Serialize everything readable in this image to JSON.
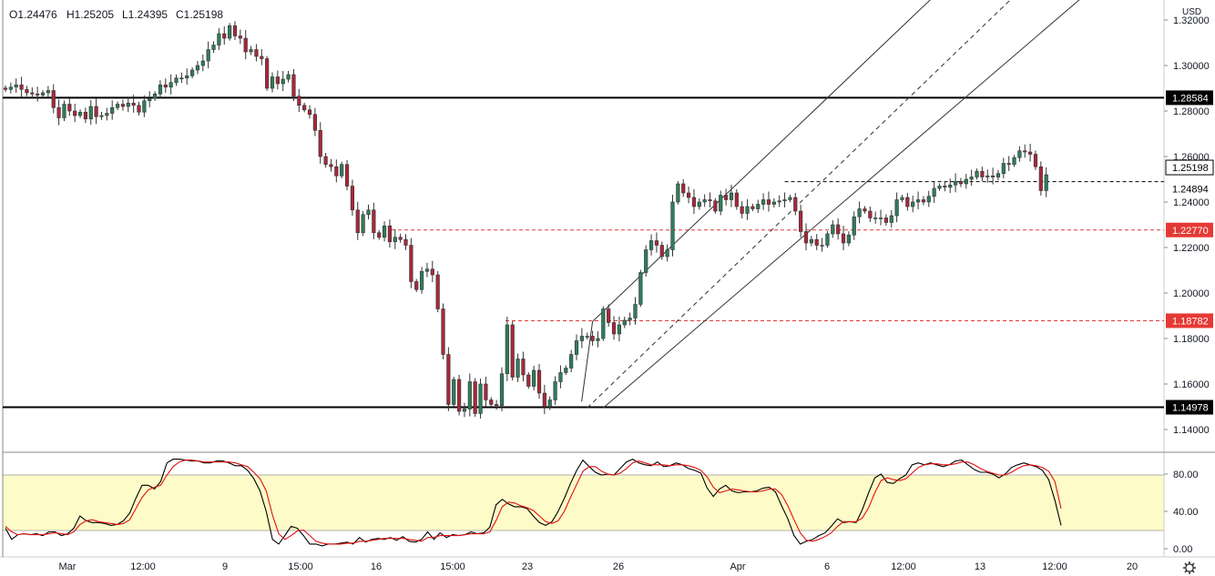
{
  "ohlc_legend": {
    "open": "O1.24476",
    "high": "H1.25205",
    "low": "L1.24395",
    "close": "C1.25198"
  },
  "currency_label": "USD",
  "settings_icon": "gear-icon",
  "colors": {
    "up": "#2e7d5b",
    "down": "#a8283a",
    "wick": "#333333",
    "stoch_k": "#000000",
    "stoch_d": "#e01010",
    "stoch_band": "#fdfbc8",
    "level_black": "#000000",
    "level_red": "#e53935"
  },
  "chart_data": [
    {
      "type": "candlestick",
      "title": "",
      "ylim": [
        1.13,
        1.325
      ],
      "y_ticks": [
        "1.32000",
        "1.30000",
        "1.28000",
        "1.26000",
        "1.24000",
        "1.22000",
        "1.20000",
        "1.18000",
        "1.16000",
        "1.14000"
      ],
      "x_ticks": [
        "Mar",
        "12:00",
        "9",
        "15:00",
        "16",
        "15:00",
        "23",
        "26",
        "Apr",
        "6",
        "12:00",
        "13",
        "12:00",
        "20"
      ],
      "grid": false,
      "price_labels": [
        {
          "text": "1.28584",
          "value": 1.28584,
          "style": "black-solid"
        },
        {
          "text": "1.25198",
          "value": 1.25198,
          "style": "current"
        },
        {
          "text": "1.24894",
          "value": 1.24894,
          "style": "black-dashed"
        },
        {
          "text": "1.22770",
          "value": 1.2277,
          "style": "red-dashed"
        },
        {
          "text": "1.18782",
          "value": 1.18782,
          "style": "red-dashed"
        },
        {
          "text": "1.14978",
          "value": 1.14978,
          "style": "black-solid"
        }
      ],
      "closes": [
        1.2895,
        1.2905,
        1.2915,
        1.2895,
        1.288,
        1.2875,
        1.287,
        1.288,
        1.289,
        1.2815,
        1.277,
        1.283,
        1.28,
        1.278,
        1.2795,
        1.2765,
        1.282,
        1.2775,
        1.278,
        1.279,
        1.2815,
        1.283,
        1.282,
        1.2835,
        1.2825,
        1.2795,
        1.2845,
        1.2855,
        1.2875,
        1.2915,
        1.2905,
        1.2925,
        1.2945,
        1.2945,
        1.2955,
        1.298,
        1.3,
        1.302,
        1.307,
        1.309,
        1.314,
        1.312,
        1.3175,
        1.313,
        1.312,
        1.306,
        1.307,
        1.304,
        1.303,
        1.29,
        1.295,
        1.292,
        1.294,
        1.296,
        1.2865,
        1.2825,
        1.2805,
        1.2785,
        1.2715,
        1.26,
        1.2565,
        1.2555,
        1.2515,
        1.2565,
        1.247,
        1.2365,
        1.2265,
        1.2345,
        1.2365,
        1.2265,
        1.2245,
        1.2295,
        1.2225,
        1.2245,
        1.2235,
        1.221,
        1.205,
        1.2015,
        1.2095,
        1.2105,
        1.208,
        1.193,
        1.173,
        1.151,
        1.162,
        1.148,
        1.149,
        1.161,
        1.147,
        1.16,
        1.153,
        1.151,
        1.1505,
        1.1645,
        1.186,
        1.163,
        1.171,
        1.164,
        1.159,
        1.166,
        1.156,
        1.15,
        1.153,
        1.161,
        1.165,
        1.167,
        1.173,
        1.179,
        1.181,
        1.181,
        1.179,
        1.18,
        1.193,
        1.187,
        1.182,
        1.186,
        1.188,
        1.189,
        1.195,
        1.209,
        1.219,
        1.223,
        1.221,
        1.216,
        1.219,
        1.24,
        1.248,
        1.244,
        1.242,
        1.238,
        1.24,
        1.241,
        1.2405,
        1.236,
        1.243,
        1.241,
        1.244,
        1.238,
        1.235,
        1.238,
        1.237,
        1.239,
        1.241,
        1.239,
        1.24,
        1.2405,
        1.241,
        1.242,
        1.236,
        1.227,
        1.222,
        1.2235,
        1.221,
        1.221,
        1.226,
        1.23,
        1.226,
        1.222,
        1.2255,
        1.2335,
        1.237,
        1.236,
        1.233,
        1.233,
        1.233,
        1.231,
        1.234,
        1.241,
        1.242,
        1.238,
        1.24,
        1.241,
        1.24,
        1.2425,
        1.246,
        1.247,
        1.2465,
        1.2475,
        1.249,
        1.248,
        1.25,
        1.251,
        1.2535,
        1.251,
        1.2515,
        1.251,
        1.2525,
        1.257,
        1.2565,
        1.2595,
        1.2625,
        1.262,
        1.261,
        1.2555,
        1.245,
        1.252
      ],
      "channel": {
        "lower": [
          [
            112,
            1.1495
          ],
          [
            202,
            1.3305
          ]
        ],
        "upper": [
          [
            110,
            1.1875
          ],
          [
            174,
            1.3305
          ]
        ],
        "median_dashed": [
          [
            109,
            1.1495
          ],
          [
            189,
            1.3305
          ]
        ]
      },
      "swing_dashed": {
        "value": 1.24894,
        "from_index": 146
      }
    },
    {
      "type": "line",
      "title": "",
      "ylim": [
        -2,
        110
      ],
      "y_ticks": [
        "80.00",
        "40.00",
        "0.00"
      ],
      "band": [
        20,
        80
      ],
      "series": [
        {
          "values": [
            22,
            10,
            15,
            16,
            15,
            16,
            14,
            18,
            18,
            14,
            16,
            22,
            35,
            30,
            28,
            28,
            27,
            25,
            26,
            30,
            38,
            54,
            68,
            68,
            64,
            72,
            92,
            96,
            96,
            95,
            94,
            94,
            92,
            92,
            94,
            94,
            92,
            89,
            89,
            84,
            75,
            62,
            40,
            10,
            5,
            14,
            24,
            22,
            14,
            5,
            5,
            3,
            5,
            5,
            6,
            7,
            5,
            12,
            7,
            10,
            11,
            10,
            12,
            9,
            13,
            8,
            7,
            10,
            18,
            10,
            17,
            12,
            15,
            14,
            15,
            18,
            16,
            17,
            23,
            47,
            53,
            48,
            45,
            45,
            43,
            35,
            28,
            25,
            29,
            40,
            54,
            70,
            84,
            95,
            88,
            82,
            79,
            80,
            79,
            86,
            93,
            96,
            92,
            90,
            89,
            93,
            88,
            89,
            92,
            90,
            86,
            84,
            81,
            65,
            56,
            64,
            68,
            62,
            60,
            61,
            61,
            62,
            65,
            66,
            61,
            46,
            32,
            14,
            5,
            8,
            10,
            14,
            17,
            24,
            32,
            28,
            29,
            28,
            42,
            60,
            76,
            80,
            71,
            70,
            75,
            79,
            90,
            92,
            90,
            92,
            90,
            88,
            90,
            94,
            95,
            90,
            85,
            82,
            82,
            80,
            76,
            80,
            87,
            90,
            92,
            90,
            88,
            84,
            74,
            52,
            25
          ]
        },
        {
          "values": [
            24,
            18,
            15,
            16,
            15,
            15,
            15,
            16,
            17,
            16,
            15,
            18,
            26,
            30,
            31,
            29,
            28,
            27,
            26,
            27,
            31,
            43,
            55,
            63,
            66,
            68,
            79,
            88,
            93,
            95,
            95,
            94,
            93,
            93,
            93,
            93,
            93,
            92,
            90,
            88,
            82,
            75,
            62,
            36,
            16,
            10,
            14,
            19,
            20,
            14,
            8,
            6,
            5,
            5,
            5,
            6,
            6,
            8,
            8,
            9,
            10,
            11,
            11,
            11,
            11,
            10,
            9,
            8,
            12,
            12,
            14,
            14,
            14,
            14,
            15,
            16,
            16,
            16,
            18,
            30,
            45,
            50,
            49,
            46,
            44,
            41,
            35,
            29,
            27,
            30,
            40,
            55,
            69,
            83,
            88,
            88,
            83,
            80,
            79,
            81,
            86,
            92,
            94,
            92,
            90,
            90,
            90,
            89,
            90,
            90,
            89,
            87,
            84,
            77,
            66,
            60,
            62,
            64,
            63,
            62,
            61,
            61,
            62,
            64,
            64,
            58,
            46,
            31,
            17,
            9,
            8,
            10,
            13,
            17,
            24,
            29,
            29,
            29,
            33,
            44,
            60,
            73,
            76,
            74,
            73,
            75,
            81,
            87,
            90,
            91,
            91,
            90,
            90,
            91,
            93,
            93,
            90,
            86,
            83,
            81,
            79,
            79,
            82,
            86,
            89,
            90,
            89,
            87,
            83,
            72,
            43
          ]
        }
      ]
    }
  ]
}
